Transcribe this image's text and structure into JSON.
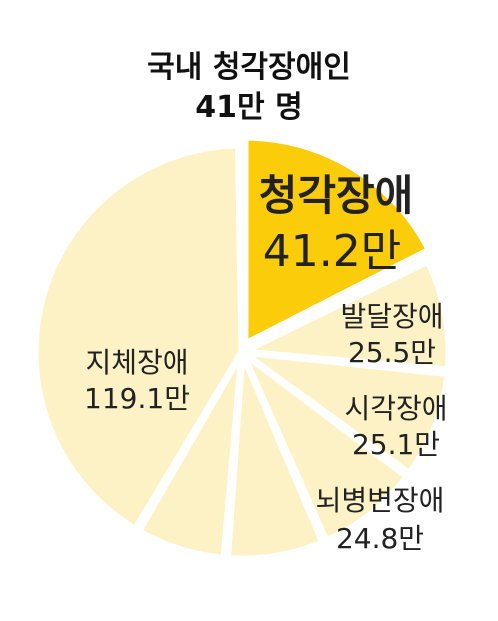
{
  "title": {
    "line1": "국내 청각장애인",
    "line2": "41만 명"
  },
  "chart_data": {
    "type": "pie",
    "title": "국내 청각장애인 41만 명",
    "unit": "만",
    "categories": [
      "청각장애",
      "발달장애",
      "시각장애",
      "뇌병변장애",
      "",
      "",
      "지체장애"
    ],
    "values": [
      41.2,
      25.5,
      25.1,
      24.8,
      null,
      null,
      119.1
    ],
    "labels": {
      "hearing": {
        "name": "청각장애",
        "value": "41.2만"
      },
      "developmental": {
        "name": "발달장애",
        "value": "25.5만"
      },
      "visual": {
        "name": "시각장애",
        "value": "25.1만"
      },
      "brain": {
        "name": "뇌병변장애",
        "value": "24.8만"
      },
      "physical": {
        "name": "지체장애",
        "value": "119.1만"
      }
    },
    "highlight": "청각장애",
    "colors": {
      "highlight": "#FACC0A",
      "other": "#FDF1C6",
      "gap": "#FFFFFF"
    }
  }
}
